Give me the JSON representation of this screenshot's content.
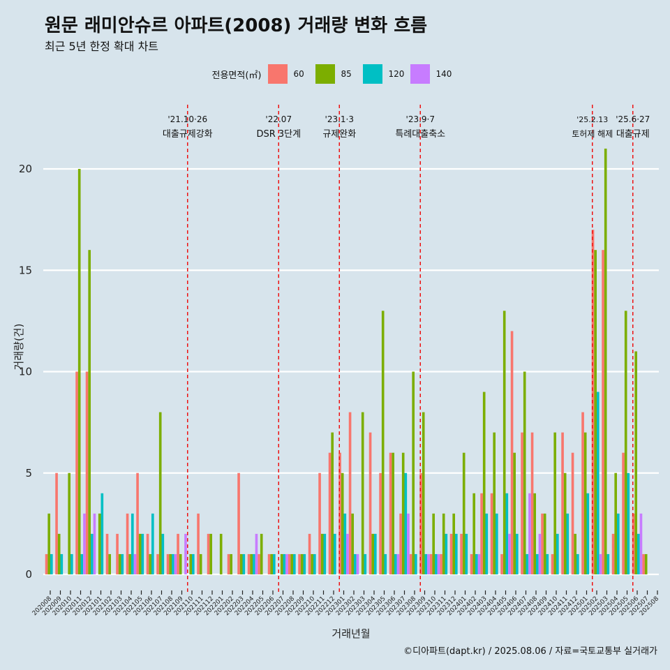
{
  "title": "원문 래미안슈르 아파트(2008) 거래량 변화 흐름",
  "subtitle": "최근 5년 한정 확대 차트",
  "caption": "©디아파트(dapt.kr) / 2025.08.06 / 자료=국토교통부 실거래가",
  "chart_data": {
    "type": "bar",
    "xlabel": "거래년월",
    "ylabel": "거래량(건)",
    "ylim": [
      -1,
      22
    ],
    "yticks": [
      0,
      5,
      10,
      15,
      20
    ],
    "legend_title": "전용면적(㎡)",
    "legend_position": "top",
    "grid": "horizontal",
    "categories": [
      "202008",
      "202009",
      "202010",
      "202011",
      "202012",
      "202101",
      "202102",
      "202103",
      "202104",
      "202105",
      "202106",
      "202107",
      "202108",
      "202109",
      "202110",
      "202111",
      "202112",
      "202201",
      "202202",
      "202203",
      "202204",
      "202205",
      "202206",
      "202207",
      "202208",
      "202209",
      "202210",
      "202211",
      "202212",
      "202301",
      "202302",
      "202303",
      "202304",
      "202305",
      "202306",
      "202307",
      "202308",
      "202309",
      "202310",
      "202311",
      "202312",
      "202401",
      "202402",
      "202403",
      "202404",
      "202405",
      "202406",
      "202407",
      "202408",
      "202409",
      "202410",
      "202411",
      "202412",
      "202501",
      "202502",
      "202503",
      "202504",
      "202505",
      "202506",
      "202507",
      "202508"
    ],
    "series": [
      {
        "name": "60",
        "color": "#f8766d",
        "values": [
          1,
          5,
          0,
          10,
          10,
          0,
          2,
          2,
          3,
          5,
          2,
          1,
          1,
          2,
          0,
          3,
          2,
          0,
          1,
          5,
          1,
          1,
          1,
          0,
          1,
          1,
          2,
          5,
          6,
          6,
          8,
          0,
          7,
          5,
          6,
          3,
          1,
          5,
          1,
          1,
          2,
          2,
          1,
          4,
          4,
          1,
          12,
          7,
          7,
          3,
          1,
          7,
          6,
          8,
          17,
          16,
          2,
          6,
          3,
          1,
          0
        ]
      },
      {
        "name": "85",
        "color": "#7cae00",
        "values": [
          3,
          2,
          5,
          20,
          16,
          3,
          1,
          1,
          1,
          2,
          1,
          8,
          1,
          1,
          1,
          1,
          2,
          2,
          1,
          1,
          1,
          2,
          1,
          1,
          1,
          1,
          1,
          2,
          7,
          5,
          3,
          8,
          2,
          13,
          6,
          6,
          10,
          8,
          3,
          3,
          3,
          6,
          4,
          9,
          7,
          13,
          6,
          10,
          4,
          3,
          7,
          5,
          2,
          7,
          16,
          21,
          5,
          13,
          11,
          1,
          0
        ]
      },
      {
        "name": "120",
        "color": "#00bfc4",
        "values": [
          1,
          1,
          1,
          1,
          2,
          4,
          0,
          1,
          3,
          2,
          3,
          2,
          1,
          0,
          1,
          0,
          0,
          0,
          0,
          1,
          1,
          0,
          1,
          1,
          1,
          1,
          1,
          2,
          2,
          3,
          1,
          1,
          2,
          1,
          1,
          5,
          1,
          1,
          1,
          2,
          2,
          2,
          1,
          3,
          3,
          4,
          2,
          1,
          1,
          1,
          2,
          3,
          1,
          4,
          9,
          1,
          3,
          5,
          2,
          0,
          0
        ]
      },
      {
        "name": "140",
        "color": "#c77cff",
        "values": [
          0,
          0,
          0,
          3,
          3,
          0,
          0,
          0,
          1,
          0,
          0,
          0,
          1,
          2,
          0,
          0,
          0,
          0,
          0,
          0,
          2,
          0,
          0,
          1,
          0,
          0,
          0,
          0,
          0,
          2,
          1,
          0,
          0,
          0,
          1,
          3,
          0,
          1,
          1,
          0,
          0,
          0,
          1,
          0,
          0,
          2,
          0,
          4,
          2,
          0,
          0,
          0,
          0,
          0,
          1,
          0,
          0,
          0,
          3,
          0,
          0
        ]
      }
    ],
    "annotations": [
      {
        "date": "'21.10·26",
        "label": "대출규제강화",
        "category": "202110"
      },
      {
        "date": "'22.07",
        "label": "DSR 3단계",
        "category": "202207"
      },
      {
        "date": "'23.1·3",
        "label": "규제완화",
        "category": "202301"
      },
      {
        "date": "'23.9·7",
        "label": "특례대출축소",
        "category": "202309"
      },
      {
        "date": "'25.2.13",
        "label": "토허제 해제",
        "category": "202502"
      },
      {
        "date": "'25.6·27",
        "label": "대출규제",
        "category": "202506"
      }
    ]
  }
}
